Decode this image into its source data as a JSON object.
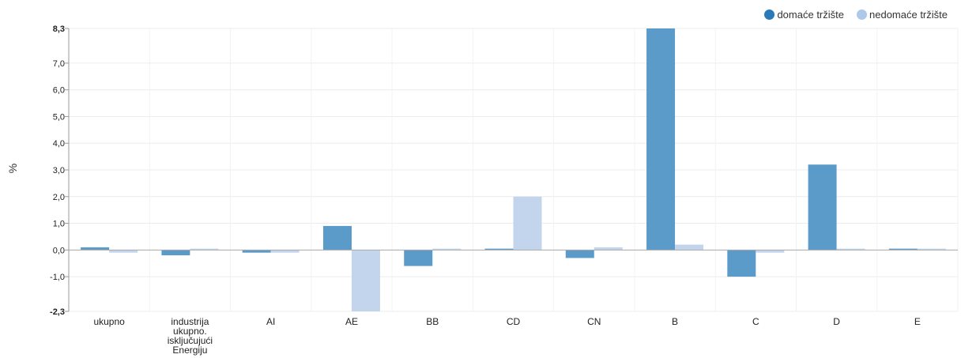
{
  "chart_data": {
    "type": "bar",
    "ylabel": "%",
    "ylim": [
      -2.3,
      8.3
    ],
    "yticks": [
      "8,3",
      "7,0",
      "6,0",
      "5,0",
      "4,0",
      "3,0",
      "2,0",
      "1,0",
      "0,0",
      "-1,0",
      "-2,3"
    ],
    "ytick_values": [
      8.3,
      7.0,
      6.0,
      5.0,
      4.0,
      3.0,
      2.0,
      1.0,
      0.0,
      -1.0,
      -2.3
    ],
    "categories": [
      [
        "ukupno"
      ],
      [
        "industrija",
        "ukupno.",
        "isključujući",
        "Energiju"
      ],
      [
        "AI"
      ],
      [
        "AE"
      ],
      [
        "BB"
      ],
      [
        "CD"
      ],
      [
        "CN"
      ],
      [
        "B"
      ],
      [
        "C"
      ],
      [
        "D"
      ],
      [
        "E"
      ]
    ],
    "series": [
      {
        "name": "domaće tržište",
        "color": "#5b9bc9",
        "values": [
          0.1,
          -0.2,
          -0.1,
          0.9,
          -0.6,
          0.05,
          -0.3,
          8.3,
          -1.0,
          3.2,
          0.05
        ]
      },
      {
        "name": "nedomaće tržište",
        "color": "#c3d5ec",
        "values": [
          -0.1,
          0.05,
          -0.1,
          -2.3,
          0.05,
          2.0,
          0.1,
          0.2,
          -0.1,
          0.05,
          0.05
        ]
      }
    ],
    "legend_position": "top-right",
    "grid": true
  },
  "legend": {
    "items": [
      {
        "label": "domaće tržište",
        "color": "#2a7ab9"
      },
      {
        "label": "nedomaće tržište",
        "color": "#aec8ea"
      }
    ]
  }
}
